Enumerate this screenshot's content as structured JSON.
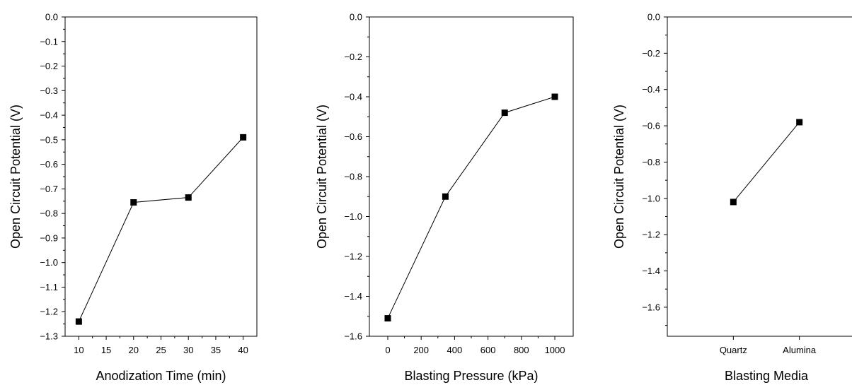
{
  "chart_data": [
    {
      "type": "line",
      "title": "",
      "xlabel": "Anodization Time (min)",
      "ylabel": "Open Circuit Potential (V)",
      "x": [
        10,
        20,
        30,
        40
      ],
      "y": [
        -1.24,
        -0.755,
        -0.735,
        -0.49
      ],
      "xlim": [
        7.5,
        42.5
      ],
      "ylim": [
        -1.3,
        0.0
      ],
      "xticks": [
        10,
        15,
        20,
        25,
        30,
        35,
        40
      ],
      "xtick_labels": [
        "10",
        "15",
        "20",
        "25",
        "30",
        "35",
        "40"
      ],
      "yticks": [
        0.0,
        -0.1,
        -0.2,
        -0.3,
        -0.4,
        -0.5,
        -0.6,
        -0.7,
        -0.8,
        -0.9,
        -1.0,
        -1.1,
        -1.2,
        -1.3
      ],
      "ytick_labels": [
        "0.0",
        "−0.1",
        "−0.2",
        "−0.3",
        "−0.4",
        "−0.5",
        "−0.6",
        "−0.7",
        "−0.8",
        "−0.9",
        "−1.0",
        "−1.1",
        "−1.2",
        "−1.3"
      ],
      "marker": "square",
      "grid": false
    },
    {
      "type": "line",
      "title": "",
      "xlabel": "Blasting Pressure (kPa)",
      "ylabel": "Open Circuit Potential (V)",
      "x": [
        0,
        345,
        700,
        1000
      ],
      "y": [
        -1.51,
        -0.9,
        -0.48,
        -0.4
      ],
      "xlim": [
        -110,
        1110
      ],
      "ylim": [
        -1.6,
        0.0
      ],
      "xticks": [
        0,
        200,
        400,
        600,
        800,
        1000
      ],
      "xtick_labels": [
        "0",
        "200",
        "400",
        "600",
        "800",
        "1000"
      ],
      "yticks": [
        0.0,
        -0.2,
        -0.4,
        -0.6,
        -0.8,
        -1.0,
        -1.2,
        -1.4,
        -1.6
      ],
      "ytick_labels": [
        "0.0",
        "−0.2",
        "−0.4",
        "−0.6",
        "−0.8",
        "−1.0",
        "−1.2",
        "−1.4",
        "−1.6"
      ],
      "marker": "square",
      "grid": false
    },
    {
      "type": "line",
      "title": "",
      "xlabel": "Blasting Media",
      "ylabel": "Open Circuit Potential (V)",
      "categories": [
        "Quartz",
        "Alumina"
      ],
      "y": [
        -1.02,
        -0.58
      ],
      "ylim": [
        -1.76,
        0.0
      ],
      "yticks": [
        0.0,
        -0.2,
        -0.4,
        -0.6,
        -0.8,
        -1.0,
        -1.2,
        -1.4,
        -1.6
      ],
      "ytick_labels": [
        "0.0",
        "−0.2",
        "−0.4",
        "−0.6",
        "−0.8",
        "−1.0",
        "−1.2",
        "−1.4",
        "−1.6"
      ],
      "marker": "square",
      "grid": false
    }
  ]
}
